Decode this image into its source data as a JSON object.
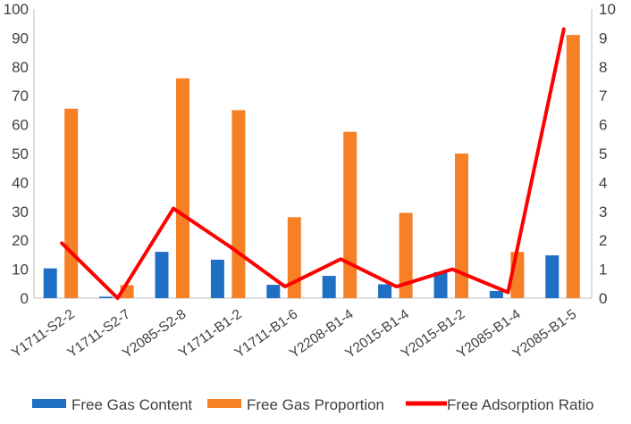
{
  "chart_data": {
    "type": "bar",
    "categories": [
      "Y1711-S2-2",
      "Y1711-S2-7",
      "Y2085-S2-8",
      "Y1711-B1-2",
      "Y1711-B1-6",
      "Y2208-B1-4",
      "Y2015-B1-4",
      "Y2015-B1-2",
      "Y2085-B1-4",
      "Y2085-B1-5"
    ],
    "series": [
      {
        "name": "Free Gas Content",
        "type": "bar",
        "axis": "left",
        "color": "#1f6fc5",
        "values": [
          10.3,
          0.5,
          16.0,
          13.3,
          4.6,
          7.7,
          4.8,
          9.0,
          2.5,
          14.8
        ]
      },
      {
        "name": "Free Gas Proportion",
        "type": "bar",
        "axis": "left",
        "color": "#f58025",
        "values": [
          65.5,
          4.5,
          76.0,
          65.0,
          28.0,
          57.5,
          29.5,
          50.0,
          16.0,
          91.0
        ]
      },
      {
        "name": "Free Adsorption Ratio",
        "type": "line",
        "axis": "right",
        "color": "#ff0000",
        "values": [
          1.9,
          0.0,
          3.1,
          1.8,
          0.4,
          1.35,
          0.4,
          1.0,
          0.2,
          9.3
        ]
      }
    ],
    "ylim_left": [
      0,
      100
    ],
    "yticks_left": [
      "0",
      "10",
      "20",
      "30",
      "40",
      "50",
      "60",
      "70",
      "80",
      "90",
      "100"
    ],
    "ylim_right": [
      0,
      10
    ],
    "yticks_right": [
      "0",
      "1",
      "2",
      "3",
      "4",
      "5",
      "6",
      "7",
      "8",
      "9",
      "10"
    ],
    "legend_position": "bottom",
    "grid": false
  }
}
